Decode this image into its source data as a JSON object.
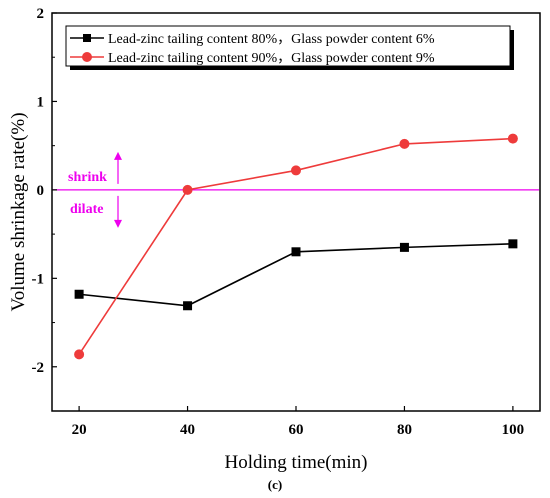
{
  "chart_data": {
    "type": "line",
    "title": "",
    "xlabel": "Holding time(min)",
    "ylabel": "Volume shrinkage rate(%)",
    "caption": "(c)",
    "x": [
      20,
      40,
      60,
      80,
      100
    ],
    "xticks": [
      "20",
      "40",
      "60",
      "80",
      "100"
    ],
    "yticks": [
      "-2",
      "-1",
      "0",
      "1",
      "2"
    ],
    "xlim": [
      15,
      105
    ],
    "ylim": [
      -2.5,
      2
    ],
    "grid": false,
    "legend_position": "top-left",
    "series": [
      {
        "name": "Lead-zinc tailing content 80%，Glass powder content 6%",
        "color": "#000000",
        "marker": "square",
        "values": [
          -1.18,
          -1.31,
          -0.7,
          -0.65,
          -0.61
        ]
      },
      {
        "name": "Lead-zinc tailing content 90%，Glass powder content 9%",
        "color": "#ee3b3b",
        "marker": "circle",
        "values": [
          -1.86,
          0.0,
          0.22,
          0.52,
          0.58
        ]
      }
    ],
    "reference_line": {
      "y": 0,
      "color": "#ee00ee",
      "label_above": "shrink",
      "label_below": "dilate"
    }
  }
}
